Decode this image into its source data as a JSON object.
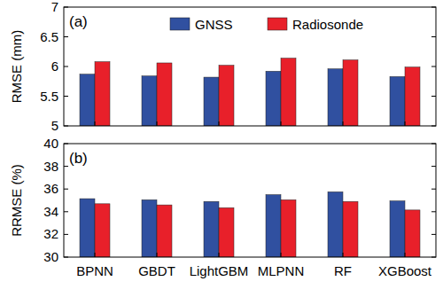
{
  "chart_data": [
    {
      "type": "bar",
      "annotation": "(a)",
      "y_label": "RMSE (mm)",
      "categories": [
        "BPNN",
        "GBDT",
        "LightGBM",
        "MLPNN",
        "RF",
        "XGBoost"
      ],
      "series": [
        {
          "name": "GNSS",
          "color": "#3050a0",
          "values": [
            5.87,
            5.84,
            5.82,
            5.92,
            5.96,
            5.83
          ]
        },
        {
          "name": "Radiosonde",
          "color": "#e8202a",
          "values": [
            6.08,
            6.06,
            6.02,
            6.14,
            6.11,
            5.99
          ]
        }
      ],
      "ylim": [
        5,
        7
      ],
      "yticks": [
        5,
        5.5,
        6,
        6.5,
        7
      ],
      "legend": "top",
      "tick_labels": "y"
    },
    {
      "type": "bar",
      "annotation": "(b)",
      "y_label": "RRMSE (%)",
      "categories": [
        "BPNN",
        "GBDT",
        "LightGBM",
        "MLPNN",
        "RF",
        "XGBoost"
      ],
      "series": [
        {
          "name": "GNSS",
          "color": "#3050a0",
          "values": [
            35.15,
            35.05,
            34.9,
            35.5,
            35.75,
            34.95
          ]
        },
        {
          "name": "Radiosonde",
          "color": "#e8202a",
          "values": [
            34.7,
            34.6,
            34.35,
            35.05,
            34.9,
            34.15
          ]
        }
      ],
      "ylim": [
        30,
        40
      ],
      "yticks": [
        30,
        32,
        34,
        36,
        38,
        40
      ]
    }
  ]
}
